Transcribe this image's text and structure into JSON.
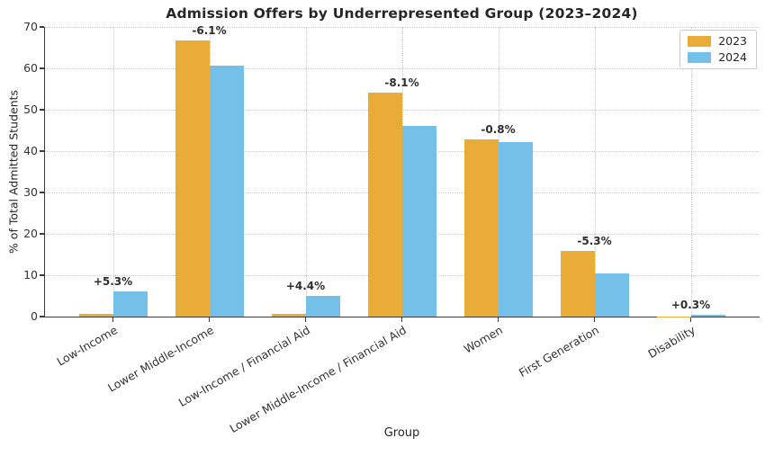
{
  "chart_data": {
    "type": "bar",
    "title": "Admission Offers by Underrepresented Group (2023–2024)",
    "xlabel": "Group",
    "ylabel": "% of Total Admitted Students",
    "categories": [
      "Low-Income",
      "Lower Middle-Income",
      "Low-Income / Financial Aid",
      "Lower Middle-Income / Financial Aid",
      "Women",
      "First Generation",
      "Disability"
    ],
    "series": [
      {
        "name": "2023",
        "color": "#E9AC37",
        "values": [
          0.7,
          66.7,
          0.6,
          54.2,
          42.9,
          15.8,
          0.1
        ]
      },
      {
        "name": "2024",
        "color": "#74C0E8",
        "values": [
          6.0,
          60.6,
          5.0,
          46.1,
          42.1,
          10.5,
          0.4
        ]
      }
    ],
    "annotations": [
      "+5.3%",
      "-6.1%",
      "+4.4%",
      "-8.1%",
      "-0.8%",
      "-5.3%",
      "+0.3%"
    ],
    "ylim": [
      0,
      70
    ],
    "yticks": [
      0,
      10,
      20,
      30,
      40,
      50,
      60,
      70
    ],
    "grid": "dotted",
    "legend_position": "upper right",
    "colors": {
      "spine": "#3c3c3c",
      "grid": "#c9c9c9",
      "text": "#262626",
      "tick_text": "#333333",
      "annotation": "#2e2e2e",
      "background": "#ffffff"
    }
  }
}
